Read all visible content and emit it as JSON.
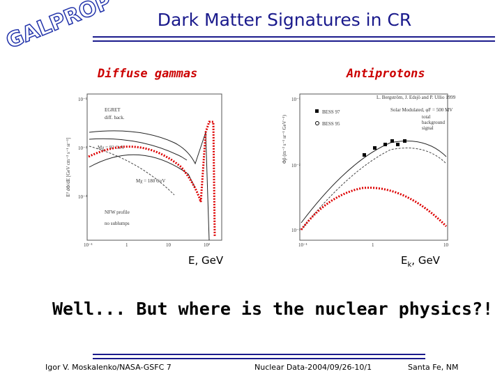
{
  "header": {
    "logo": "GALPROP",
    "title": "Dark Matter Signatures in CR"
  },
  "panels": [
    {
      "title": "Diffuse gammas",
      "x_label": "E, GeV",
      "plot_texts": [
        "EGRET",
        "diff. back.",
        "Mχ = 92 GeV",
        "Mχ = 180 GeV",
        "NFW profile",
        "no sublumps"
      ],
      "y_axis_label": "E² dΦ/dE [GeV cm⁻² s⁻¹ sr⁻¹]",
      "yticks": [
        "10⁻¹",
        "10⁻²",
        "10⁻³"
      ],
      "xticks": [
        "10⁻¹",
        "1",
        "10",
        "10²"
      ]
    },
    {
      "title": "Antiprotons",
      "x_label": {
        "main": "E",
        "sub": "k",
        "rest": ", GeV"
      },
      "plot_texts": [
        "L. Bergström, J. Edsjö and P. Ullio 1999",
        "BESS 97",
        "BESS 95",
        "Solar Modulated, φF = 500 MV",
        "total",
        "background",
        "signal"
      ],
      "y_axis_label": "Φp̄ (m⁻² s⁻¹ sr⁻¹ GeV⁻¹)",
      "yticks": [
        "10⁻¹",
        "10⁻²",
        "10⁻³"
      ],
      "xticks": [
        "10⁻¹",
        "1",
        "10"
      ]
    }
  ],
  "question": "Well... But where is the nuclear physics?!",
  "footer": {
    "author": "Igor V. Moskalenko/NASA-GSFC 7",
    "conference": "Nuclear Data-2004/09/26-10/1",
    "place": "Santa Fe, NM"
  }
}
